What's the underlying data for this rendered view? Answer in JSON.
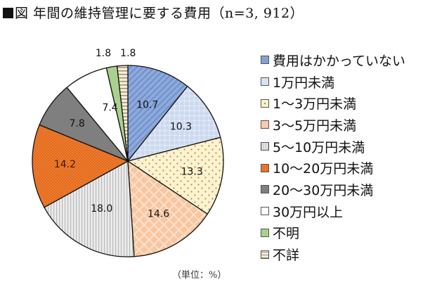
{
  "title": {
    "marker": "■",
    "text": "図 年間の維持管理に要する費用（n=3, 912）"
  },
  "unit_note": "（単位：%）",
  "chart_data": {
    "type": "pie",
    "title": "図 年間の維持管理に要する費用（n=3, 912）",
    "n": 3912,
    "unit": "%",
    "start_angle_deg": 0,
    "direction": "clockwise",
    "categories": [
      "費用はかかっていない",
      "1万円未満",
      "1〜3万円未満",
      "3〜5万円未満",
      "5〜10万円未満",
      "10〜20万円未満",
      "20〜30万円未満",
      "30万円以上",
      "不明",
      "不詳"
    ],
    "values": [
      10.7,
      10.3,
      13.3,
      14.6,
      18.0,
      14.2,
      7.8,
      7.4,
      1.8,
      1.8
    ],
    "data_labels": [
      "10.7",
      "10.3",
      "13.3",
      "14.6",
      "18.0",
      "14.2",
      "7.8",
      "7.4",
      "1.8",
      "1.8"
    ],
    "colors": [
      "#8eaadb",
      "#dae3f3",
      "#fff2cc",
      "#f8cbad",
      "#e7e6e6",
      "#ed7d31",
      "#7f7f7f",
      "#ffffff",
      "#a9d18e",
      "#fbe5d6"
    ],
    "patterns": [
      "diagonal-stripes",
      "light-dots",
      "dots",
      "diamond-grid",
      "vertical-stripes",
      "checker",
      "solid",
      "solid",
      "solid",
      "horizontal-stripes"
    ],
    "legend_position": "right"
  },
  "legend": {
    "items": [
      {
        "label": "費用はかかっていない"
      },
      {
        "label": "1万円未満"
      },
      {
        "label": "1〜3万円未満"
      },
      {
        "label": "3〜5万円未満"
      },
      {
        "label": "5〜10万円未満"
      },
      {
        "label": "10〜20万円未満"
      },
      {
        "label": "20〜30万円未満"
      },
      {
        "label": "30万円以上"
      },
      {
        "label": "不明"
      },
      {
        "label": "不詳"
      }
    ]
  }
}
